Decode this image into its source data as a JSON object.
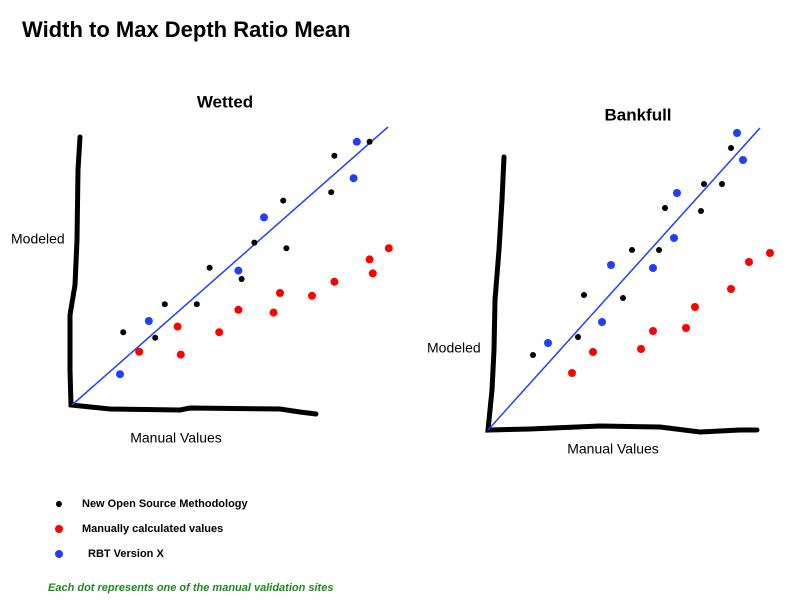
{
  "title": "Width to Max Depth Ratio Mean",
  "charts": [
    {
      "type": "scatter",
      "title": "Wetted",
      "xlabel": "Manual Values",
      "ylabel": "Modeled",
      "xlim": [
        0,
        100
      ],
      "ylim": [
        0,
        100
      ],
      "series": [
        {
          "color": "#000000",
          "x": [
            16,
            26,
            29,
            39,
            43,
            53,
            57,
            66,
            67,
            81,
            82,
            93
          ],
          "y": [
            26,
            24,
            36,
            36,
            49,
            45,
            58,
            73,
            56,
            76,
            89,
            94
          ]
        },
        {
          "color": "#ff0000",
          "x": [
            21,
            33,
            34,
            46,
            52,
            63,
            65,
            75,
            82,
            93,
            94,
            99
          ],
          "y": [
            19,
            28,
            18,
            26,
            34,
            33,
            40,
            39,
            44,
            52,
            47,
            56
          ]
        },
        {
          "color": "#1f3fff",
          "x": [
            15,
            24,
            52,
            60,
            88,
            89
          ],
          "y": [
            11,
            30,
            48,
            67,
            81,
            94
          ]
        }
      ]
    },
    {
      "type": "scatter",
      "title": "Bankfull",
      "xlabel": "Manual Values",
      "ylabel": "Modeled",
      "xlim": [
        0,
        100
      ],
      "ylim": [
        0,
        100
      ],
      "series": [
        {
          "color": "#000000",
          "x": [
            15,
            30,
            32,
            45,
            48,
            57,
            59,
            71,
            72,
            78,
            81
          ],
          "y": [
            25,
            31,
            45,
            44,
            60,
            60,
            74,
            73,
            82,
            82,
            94
          ]
        },
        {
          "color": "#ff0000",
          "x": [
            28,
            35,
            51,
            55,
            66,
            69,
            81,
            87,
            94
          ],
          "y": [
            19,
            26,
            27,
            33,
            34,
            41,
            47,
            56,
            59
          ]
        },
        {
          "color": "#1f3fff",
          "x": [
            20,
            38,
            41,
            55,
            62,
            63,
            83,
            85
          ],
          "y": [
            29,
            36,
            55,
            54,
            64,
            79,
            99,
            90
          ]
        }
      ]
    }
  ],
  "legend": [
    {
      "name": "New Open Source Methodology",
      "color": "#000000"
    },
    {
      "name": "Manually calculated values",
      "color": "#ff0000"
    },
    {
      "name": "RBT Version X",
      "color": "#1f3fff"
    }
  ],
  "note": "Each dot represents one of the manual validation sites"
}
